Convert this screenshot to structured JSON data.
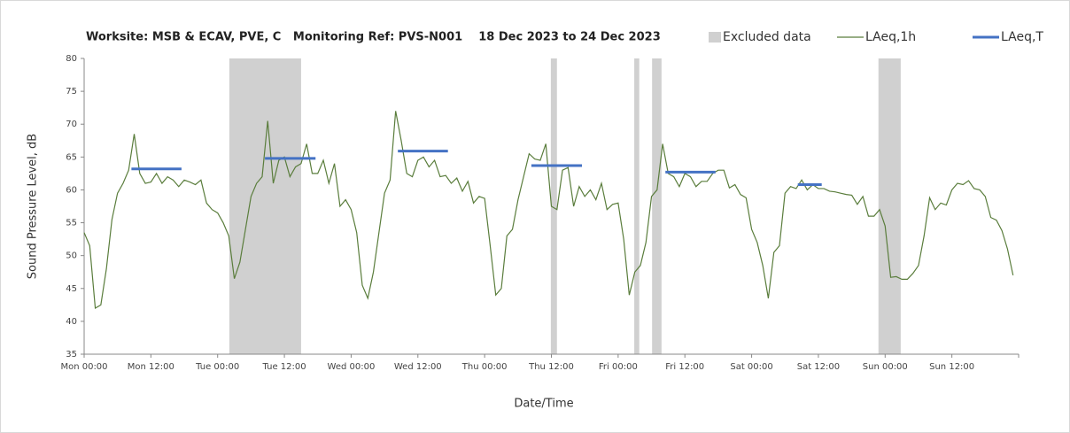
{
  "chart_data": {
    "type": "line",
    "title": "Worksite: MSB & ECAV, PVE, C   Monitoring Ref: PVS-N001    18 Dec 2023 to 24 Dec 2023",
    "xlabel": "Date/Time",
    "ylabel": "Sound Pressure Level, dB",
    "xlim": [
      0,
      168
    ],
    "ylim": [
      35,
      80
    ],
    "xticks": [
      {
        "value": 0,
        "label": "Mon 00:00"
      },
      {
        "value": 12,
        "label": "Mon 12:00"
      },
      {
        "value": 24,
        "label": "Tue 00:00"
      },
      {
        "value": 36,
        "label": "Tue 12:00"
      },
      {
        "value": 48,
        "label": "Wed 00:00"
      },
      {
        "value": 60,
        "label": "Wed 12:00"
      },
      {
        "value": 72,
        "label": "Thu 00:00"
      },
      {
        "value": 84,
        "label": "Thu 12:00"
      },
      {
        "value": 96,
        "label": "Fri 00:00"
      },
      {
        "value": 108,
        "label": "Fri 12:00"
      },
      {
        "value": 120,
        "label": "Sat 00:00"
      },
      {
        "value": 132,
        "label": "Sat 12:00"
      },
      {
        "value": 144,
        "label": "Sun 00:00"
      },
      {
        "value": 156,
        "label": "Sun 12:00"
      }
    ],
    "yticks": [
      35,
      40,
      45,
      50,
      55,
      60,
      65,
      70,
      75,
      80
    ],
    "excluded": {
      "name": "Excluded data",
      "color": "#d0d0d0",
      "start": [
        26.1,
        83.9,
        98.9,
        102.1,
        142.8
      ],
      "end": [
        39.0,
        85.0,
        99.8,
        103.8,
        146.8
      ]
    },
    "series": [
      {
        "name": "LAeq,1h",
        "color": "#5a7d3c",
        "x": [
          0,
          1,
          2,
          3,
          4,
          5,
          6,
          7,
          8,
          9,
          10,
          11,
          12,
          13,
          14,
          15,
          16,
          17,
          18,
          19,
          20,
          21,
          22,
          23,
          24,
          25,
          26,
          27,
          28,
          29,
          30,
          31,
          32,
          33,
          34,
          35,
          36,
          37,
          38,
          39,
          40,
          41,
          42,
          43,
          44,
          45,
          46,
          47,
          48,
          49,
          50,
          51,
          52,
          53,
          54,
          55,
          56,
          57,
          58,
          59,
          60,
          61,
          62,
          63,
          64,
          65,
          66,
          67,
          68,
          69,
          70,
          71,
          72,
          73,
          74,
          75,
          76,
          77,
          78,
          79,
          80,
          81,
          82,
          83,
          84,
          85,
          86,
          87,
          88,
          89,
          90,
          91,
          92,
          93,
          94,
          95,
          96,
          97,
          98,
          99,
          100,
          101,
          102,
          103,
          104,
          105,
          106,
          107,
          108,
          109,
          110,
          111,
          112,
          113,
          114,
          115,
          116,
          117,
          118,
          119,
          120,
          121,
          122,
          123,
          124,
          125,
          126,
          127,
          128,
          129,
          130,
          131,
          132,
          133,
          134,
          135,
          136,
          137,
          138,
          139,
          140,
          141,
          142,
          143,
          144,
          145,
          146,
          147,
          148,
          149,
          150,
          151,
          152,
          153,
          154,
          155,
          156,
          157,
          158,
          159,
          160,
          161,
          162,
          163,
          164,
          165,
          166,
          167
        ],
        "values": [
          53.5,
          51.5,
          42,
          42.5,
          48,
          55.5,
          59.5,
          61,
          63,
          68.5,
          62.5,
          61,
          61.2,
          62.5,
          61,
          62,
          61.5,
          60.5,
          61.5,
          61.2,
          60.8,
          61.5,
          58,
          57,
          56.5,
          55,
          53,
          46.5,
          49,
          54,
          59,
          61,
          62,
          70.5,
          61,
          64.5,
          65,
          62,
          63.5,
          64,
          67,
          62.5,
          62.5,
          64.5,
          61,
          64,
          57.5,
          58.5,
          57,
          53.5,
          45.5,
          43.5,
          47.5,
          53.5,
          59.5,
          61.5,
          72,
          67.5,
          62.5,
          62,
          64.5,
          65,
          63.5,
          64.5,
          62,
          62.2,
          61,
          61.8,
          59.8,
          61.3,
          58,
          59,
          58.7,
          51.5,
          44,
          45,
          53,
          54,
          58.5,
          62,
          65.5,
          64.7,
          64.5,
          67,
          57.5,
          57,
          63,
          63.4,
          57.5,
          60.5,
          59,
          60,
          58.5,
          61,
          57,
          57.8,
          58,
          52.5,
          44,
          47.5,
          48.5,
          52,
          59,
          60,
          67,
          62.5,
          62,
          60.5,
          62.5,
          62,
          60.5,
          61.3,
          61.3,
          62.5,
          63,
          63,
          60.3,
          60.8,
          59.3,
          58.8,
          54,
          52,
          48.5,
          43.5,
          50.5,
          51.5,
          59.5,
          60.5,
          60.2,
          61.5,
          60,
          60.8,
          60.2,
          60.2,
          59.8,
          59.7,
          59.5,
          59.3,
          59.2,
          57.8,
          59,
          56,
          56,
          57,
          54.5,
          46.7,
          46.8,
          46.4,
          46.4,
          47.3,
          48.5,
          53,
          58.8,
          57,
          58,
          57.7,
          60,
          61,
          60.8,
          61.4,
          60.2,
          60,
          59,
          55.8,
          55.4,
          53.8,
          51,
          47
        ]
      },
      {
        "name": "LAeq,T",
        "color": "#4472c4",
        "x_start": [
          8.5,
          32.5,
          56.4,
          80.4,
          104.5,
          128.3
        ],
        "x_end": [
          17.5,
          41.6,
          65.4,
          89.5,
          113.5,
          132.6
        ],
        "values": [
          63.2,
          64.8,
          65.9,
          63.7,
          62.7,
          60.8
        ]
      }
    ]
  }
}
